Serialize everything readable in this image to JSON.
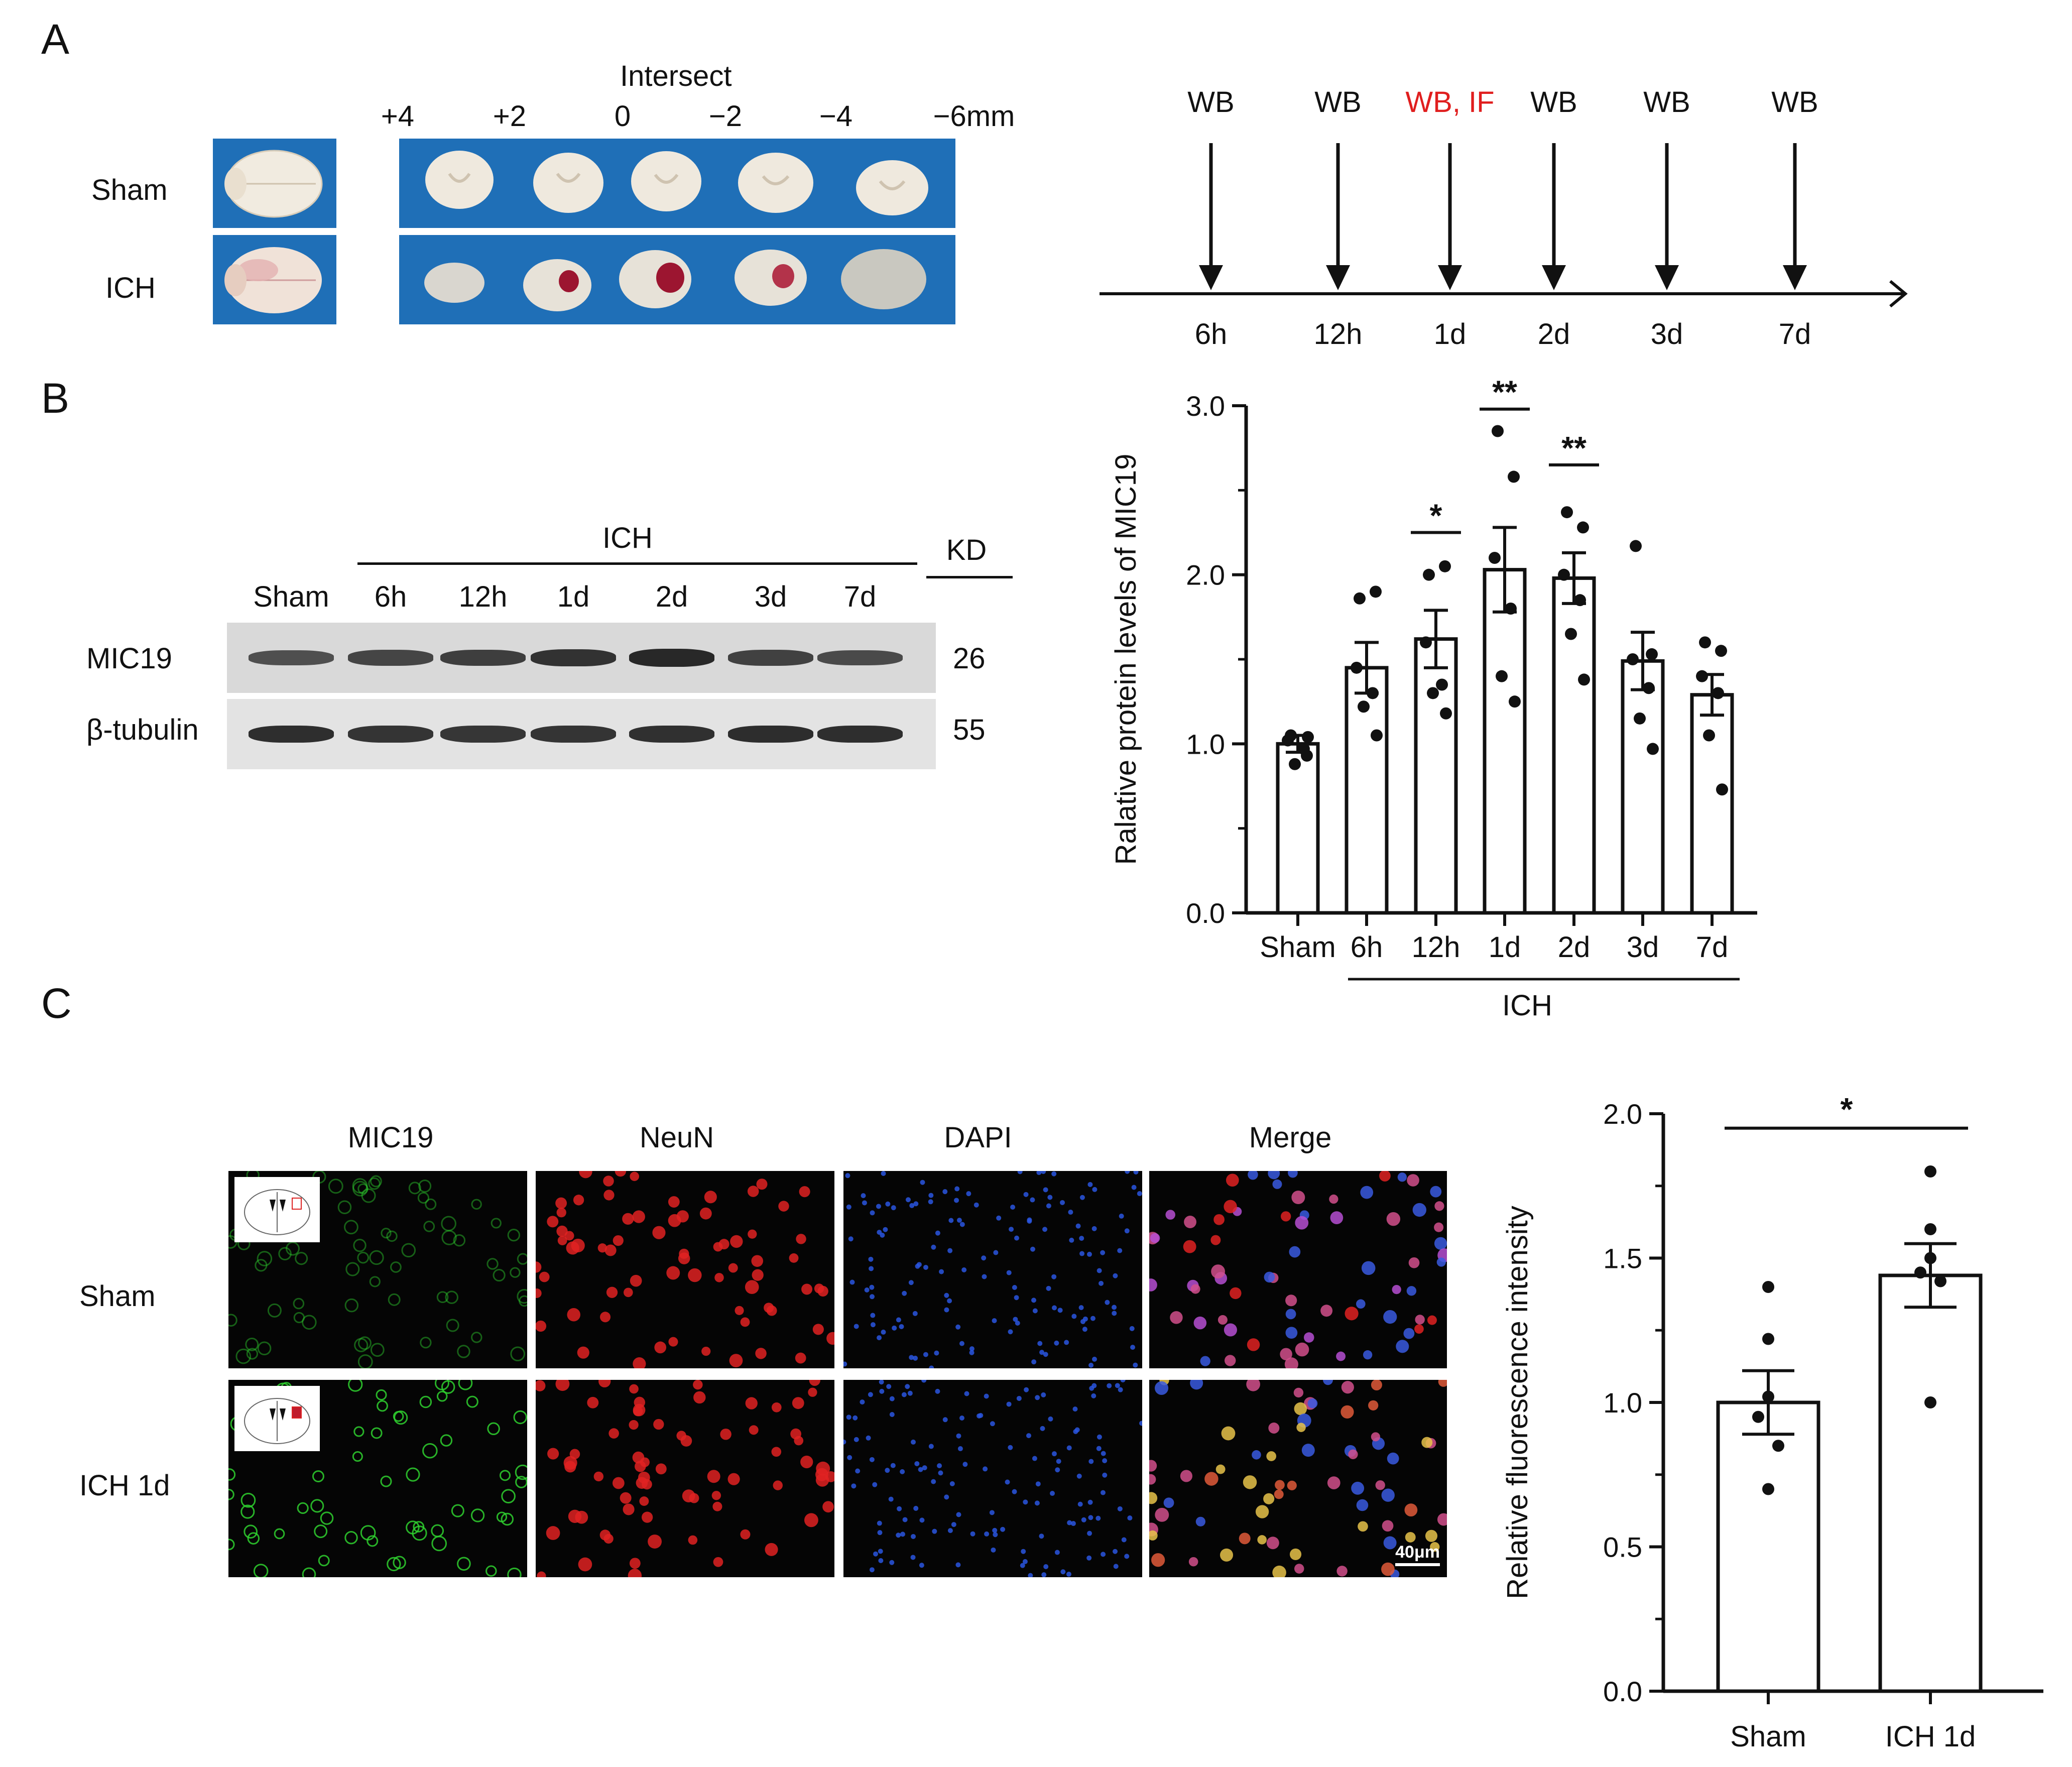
{
  "panels": {
    "a": "A",
    "b": "B",
    "c": "C"
  },
  "panel_a": {
    "group_labels": [
      "Sham",
      "ICH"
    ],
    "intersect_label": "Intersect",
    "slice_positions": [
      "+4",
      "+2",
      "0",
      "−2",
      "−4",
      "−6mm"
    ],
    "timeline": {
      "events": [
        {
          "assay": "WB",
          "time": "6h",
          "highlight": false
        },
        {
          "assay": "WB",
          "time": "12h",
          "highlight": false
        },
        {
          "assay": "WB, IF",
          "time": "1d",
          "highlight": true
        },
        {
          "assay": "WB",
          "time": "2d",
          "highlight": false
        },
        {
          "assay": "WB",
          "time": "3d",
          "highlight": false
        },
        {
          "assay": "WB",
          "time": "7d",
          "highlight": false
        }
      ],
      "highlight_color": "#e01e1e"
    },
    "colors": {
      "photo_bg": "#1f6fb7",
      "tissue": "#ece6da",
      "hemorrhage": "#9c1530"
    }
  },
  "panel_b": {
    "blot": {
      "ich_label": "ICH",
      "kd_label": "KD",
      "lanes": [
        "Sham",
        "6h",
        "12h",
        "1d",
        "2d",
        "3d",
        "7d"
      ],
      "rows": [
        {
          "protein": "MIC19",
          "kd": "26"
        },
        {
          "protein": "β-tubulin",
          "kd": "55"
        }
      ]
    }
  },
  "panel_c": {
    "channels": [
      "MIC19",
      "NeuN",
      "DAPI",
      "Merge"
    ],
    "rows": [
      "Sham",
      "ICH 1d"
    ],
    "scale_bar": "40μm",
    "colors": {
      "MIC19": "#2fd12f",
      "NeuN": "#e02222",
      "DAPI": "#2a56e0",
      "Merge": "#d2508c"
    }
  },
  "chart_data": [
    {
      "type": "bar",
      "ylabel": "Ralative protein levels of MIC19",
      "xlabel": "",
      "categories": [
        "Sham",
        "6h",
        "12h",
        "1d",
        "2d",
        "3d",
        "7d"
      ],
      "group_label": "ICH",
      "values": [
        1.0,
        1.45,
        1.62,
        2.03,
        1.98,
        1.49,
        1.29
      ],
      "sem": [
        0.05,
        0.15,
        0.17,
        0.25,
        0.15,
        0.17,
        0.12
      ],
      "points": [
        [
          1.05,
          0.93,
          1.02,
          0.97,
          0.88,
          1.04
        ],
        [
          1.86,
          1.9,
          1.45,
          1.3,
          1.22,
          1.05
        ],
        [
          2.0,
          2.05,
          1.6,
          1.35,
          1.3,
          1.18
        ],
        [
          2.85,
          2.58,
          2.1,
          1.8,
          1.4,
          1.25
        ],
        [
          2.37,
          2.28,
          2.0,
          1.85,
          1.65,
          1.38
        ],
        [
          2.17,
          1.53,
          1.5,
          1.33,
          1.15,
          0.97
        ],
        [
          1.6,
          1.55,
          1.4,
          1.3,
          1.05,
          0.73
        ]
      ],
      "significance": [
        {
          "category": "12h",
          "label": "*"
        },
        {
          "category": "1d",
          "label": "**"
        },
        {
          "category": "2d",
          "label": "**"
        }
      ],
      "ylim": [
        0,
        3.0
      ],
      "yticks": [
        "0.0",
        "1.0",
        "2.0",
        "3.0"
      ],
      "grid": false
    },
    {
      "type": "bar",
      "ylabel": "Relative fluorescence intensity",
      "xlabel": "",
      "categories": [
        "Sham",
        "ICH 1d"
      ],
      "values": [
        1.0,
        1.44
      ],
      "sem": [
        0.11,
        0.11
      ],
      "points": [
        [
          1.4,
          1.22,
          1.02,
          0.95,
          0.85,
          0.7
        ],
        [
          1.8,
          1.6,
          1.5,
          1.45,
          1.42,
          1.0
        ]
      ],
      "significance": [
        {
          "from": "Sham",
          "to": "ICH 1d",
          "label": "*"
        }
      ],
      "ylim": [
        0,
        2.0
      ],
      "yticks": [
        "0.0",
        "0.5",
        "1.0",
        "1.5",
        "2.0"
      ],
      "grid": false
    }
  ]
}
